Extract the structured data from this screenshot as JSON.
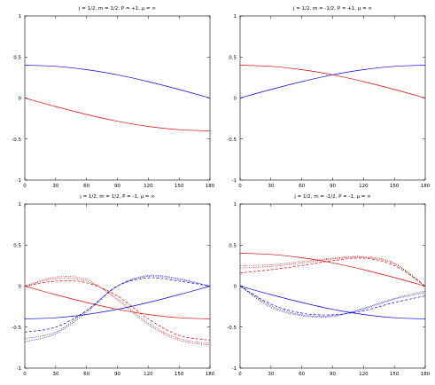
{
  "chart_data": [
    {
      "type": "line",
      "title": "j = 1/2, m = 1/2, P = +1, μ = ∞",
      "xlim": [
        0,
        180
      ],
      "ylim": [
        -1,
        1
      ],
      "xticks": [
        "0",
        "30",
        "60",
        "90",
        "120",
        "150",
        "180"
      ],
      "yticks": [
        "-1",
        "-0.5",
        "0",
        "0.5",
        "1"
      ],
      "grid": false,
      "series": [
        {
          "color": "#0000dd",
          "dash": "solid",
          "x": [
            0,
            30,
            60,
            90,
            120,
            150,
            180
          ],
          "y": [
            0.4,
            0.386,
            0.346,
            0.283,
            0.2,
            0.104,
            0.0
          ]
        },
        {
          "color": "#dd0000",
          "dash": "solid",
          "x": [
            0,
            30,
            60,
            90,
            120,
            150,
            180
          ],
          "y": [
            0.0,
            -0.104,
            -0.2,
            -0.283,
            -0.346,
            -0.386,
            -0.4
          ]
        }
      ]
    },
    {
      "type": "line",
      "title": "j = 1/2, m = -1/2, P = +1, μ = ∞",
      "xlim": [
        0,
        180
      ],
      "ylim": [
        -1,
        1
      ],
      "xticks": [
        "0",
        "30",
        "60",
        "90",
        "120",
        "150",
        "180"
      ],
      "yticks": [
        "-1",
        "-0.5",
        "0",
        "0.5",
        "1"
      ],
      "grid": false,
      "series": [
        {
          "color": "#0000dd",
          "dash": "solid",
          "x": [
            0,
            30,
            60,
            90,
            120,
            150,
            180
          ],
          "y": [
            0.0,
            0.104,
            0.2,
            0.283,
            0.346,
            0.386,
            0.4
          ]
        },
        {
          "color": "#dd0000",
          "dash": "solid",
          "x": [
            0,
            30,
            60,
            90,
            120,
            150,
            180
          ],
          "y": [
            0.4,
            0.386,
            0.346,
            0.283,
            0.2,
            0.104,
            0.0
          ]
        }
      ]
    },
    {
      "type": "line",
      "title": "j = 1/2, m = 1/2, P = -1, μ = ∞",
      "xlim": [
        0,
        180
      ],
      "ylim": [
        -1,
        1
      ],
      "xticks": [
        "0",
        "30",
        "60",
        "90",
        "120",
        "150",
        "180"
      ],
      "yticks": [
        "-1",
        "-0.5",
        "0",
        "0.5",
        "1"
      ],
      "grid": false,
      "series": [
        {
          "color": "#0000dd",
          "dash": "solid",
          "x": [
            0,
            30,
            60,
            90,
            120,
            150,
            180
          ],
          "y": [
            -0.4,
            -0.386,
            -0.346,
            -0.283,
            -0.2,
            -0.104,
            0.0
          ]
        },
        {
          "color": "#dd0000",
          "dash": "solid",
          "x": [
            0,
            30,
            60,
            90,
            120,
            150,
            180
          ],
          "y": [
            0.0,
            -0.104,
            -0.2,
            -0.283,
            -0.346,
            -0.386,
            -0.4
          ]
        },
        {
          "color": "#0000dd",
          "dash": "dashed",
          "x": [
            0,
            30,
            60,
            90,
            120,
            150,
            180
          ],
          "y": [
            -0.56,
            -0.5,
            -0.3,
            0.0,
            0.1,
            0.06,
            0.0
          ]
        },
        {
          "color": "#dd0000",
          "dash": "dashed",
          "x": [
            0,
            30,
            60,
            90,
            120,
            150,
            180
          ],
          "y": [
            0.0,
            0.06,
            0.04,
            -0.12,
            -0.4,
            -0.6,
            -0.66
          ]
        },
        {
          "color": "#0000dd",
          "dash": "dotted",
          "x": [
            0,
            30,
            60,
            90,
            120,
            150,
            180
          ],
          "y": [
            -0.64,
            -0.56,
            -0.3,
            0.0,
            0.12,
            0.08,
            0.0
          ]
        },
        {
          "color": "#dd0000",
          "dash": "dotted",
          "x": [
            0,
            30,
            60,
            90,
            120,
            150,
            180
          ],
          "y": [
            0.0,
            0.09,
            0.06,
            -0.15,
            -0.45,
            -0.64,
            -0.7
          ]
        },
        {
          "color": "#0000dd",
          "dash": "dotted",
          "x": [
            0,
            30,
            60,
            90,
            120,
            150,
            180
          ],
          "y": [
            -0.68,
            -0.58,
            -0.32,
            0.0,
            0.13,
            0.09,
            0.0
          ]
        },
        {
          "color": "#dd0000",
          "dash": "dotted",
          "x": [
            0,
            30,
            60,
            90,
            120,
            150,
            180
          ],
          "y": [
            0.0,
            0.11,
            0.08,
            -0.17,
            -0.47,
            -0.66,
            -0.72
          ]
        }
      ]
    },
    {
      "type": "line",
      "title": "j = 1/2, m = -1/2, P = -1, μ = ∞",
      "xlim": [
        0,
        180
      ],
      "ylim": [
        -1,
        1
      ],
      "xticks": [
        "0",
        "30",
        "60",
        "90",
        "120",
        "150",
        "180"
      ],
      "yticks": [
        "-1",
        "-0.5",
        "0",
        "0.5",
        "1"
      ],
      "grid": false,
      "series": [
        {
          "color": "#dd0000",
          "dash": "solid",
          "x": [
            0,
            30,
            60,
            90,
            120,
            150,
            180
          ],
          "y": [
            0.4,
            0.386,
            0.346,
            0.283,
            0.2,
            0.104,
            0.0
          ]
        },
        {
          "color": "#0000dd",
          "dash": "solid",
          "x": [
            0,
            30,
            60,
            90,
            120,
            150,
            180
          ],
          "y": [
            0.0,
            -0.104,
            -0.2,
            -0.283,
            -0.346,
            -0.386,
            -0.4
          ]
        },
        {
          "color": "#dd0000",
          "dash": "dashed",
          "x": [
            0,
            30,
            60,
            90,
            120,
            150,
            180
          ],
          "y": [
            0.16,
            0.2,
            0.25,
            0.31,
            0.34,
            0.25,
            0.0
          ]
        },
        {
          "color": "#0000dd",
          "dash": "dashed",
          "x": [
            0,
            30,
            60,
            90,
            120,
            150,
            180
          ],
          "y": [
            0.0,
            -0.22,
            -0.33,
            -0.35,
            -0.3,
            -0.2,
            -0.12
          ]
        },
        {
          "color": "#dd0000",
          "dash": "dotted",
          "x": [
            0,
            30,
            60,
            90,
            120,
            150,
            180
          ],
          "y": [
            0.22,
            0.24,
            0.28,
            0.33,
            0.35,
            0.27,
            0.0
          ]
        },
        {
          "color": "#0000dd",
          "dash": "dotted",
          "x": [
            0,
            30,
            60,
            90,
            120,
            150,
            180
          ],
          "y": [
            0.0,
            -0.24,
            -0.35,
            -0.36,
            -0.28,
            -0.16,
            -0.08
          ]
        },
        {
          "color": "#dd0000",
          "dash": "dotted",
          "x": [
            0,
            30,
            60,
            90,
            120,
            150,
            180
          ],
          "y": [
            0.25,
            0.26,
            0.3,
            0.34,
            0.36,
            0.28,
            0.0
          ]
        },
        {
          "color": "#0000dd",
          "dash": "dotted",
          "x": [
            0,
            30,
            60,
            90,
            120,
            150,
            180
          ],
          "y": [
            0.0,
            -0.26,
            -0.36,
            -0.37,
            -0.27,
            -0.15,
            -0.06
          ]
        }
      ]
    }
  ]
}
